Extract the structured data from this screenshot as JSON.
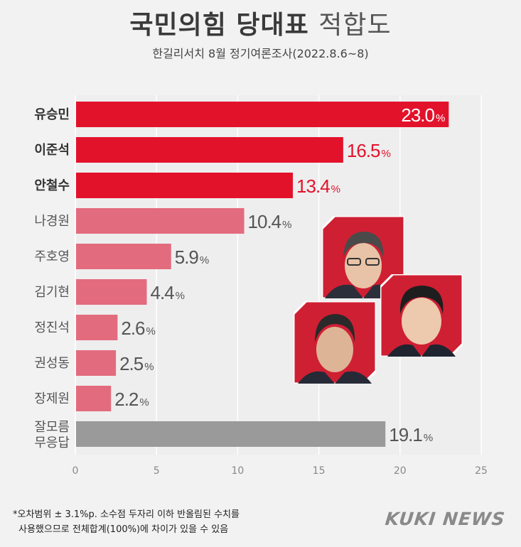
{
  "title_bold": "국민의힘 당대표",
  "title_light": "적합도",
  "subtitle": "한길리서치 8월 정기여론조사(2022.8.6~8)",
  "footnote_line1": "*오차범위 ± 3.1%p. 소수점 두자리 이하 반올림된 수치를",
  "footnote_line2": "사용했으므로 전체합계(100%)에 차이가 있을 수 있음",
  "brand": "KUKI NEWS",
  "chart_data": {
    "type": "bar",
    "orientation": "horizontal",
    "title": "국민의힘 당대표 적합도",
    "subtitle": "한길리서치 8월 정기여론조사(2022.8.6~8)",
    "categories": [
      "유승민",
      "이준석",
      "안철수",
      "나경원",
      "주호영",
      "김기현",
      "정진석",
      "권성동",
      "장제원",
      "잘모름\n무응답"
    ],
    "values": [
      23.0,
      16.5,
      13.4,
      10.4,
      5.9,
      4.4,
      2.6,
      2.5,
      2.2,
      19.1
    ],
    "value_labels": [
      "23.0",
      "16.5",
      "13.4",
      "10.4",
      "5.9",
      "4.4",
      "2.6",
      "2.5",
      "2.2",
      "19.1"
    ],
    "unit": "%",
    "xlim": [
      0,
      25
    ],
    "xticks": [
      0,
      5,
      10,
      15,
      20,
      25
    ],
    "grid": true,
    "highlight_count": 3,
    "colors": {
      "highlight": "#e3122b",
      "normal": "#e36b7e",
      "unknown": "#9a9a9a",
      "label_highlight_text": "#e3122b",
      "label_normal_text": "#555555",
      "inside_label_text": "#ffffff",
      "grid": "#ffffff",
      "tick_text": "#888888"
    }
  },
  "photo_colors": {
    "frame": "#cf1f33",
    "border": "#ffffff"
  }
}
